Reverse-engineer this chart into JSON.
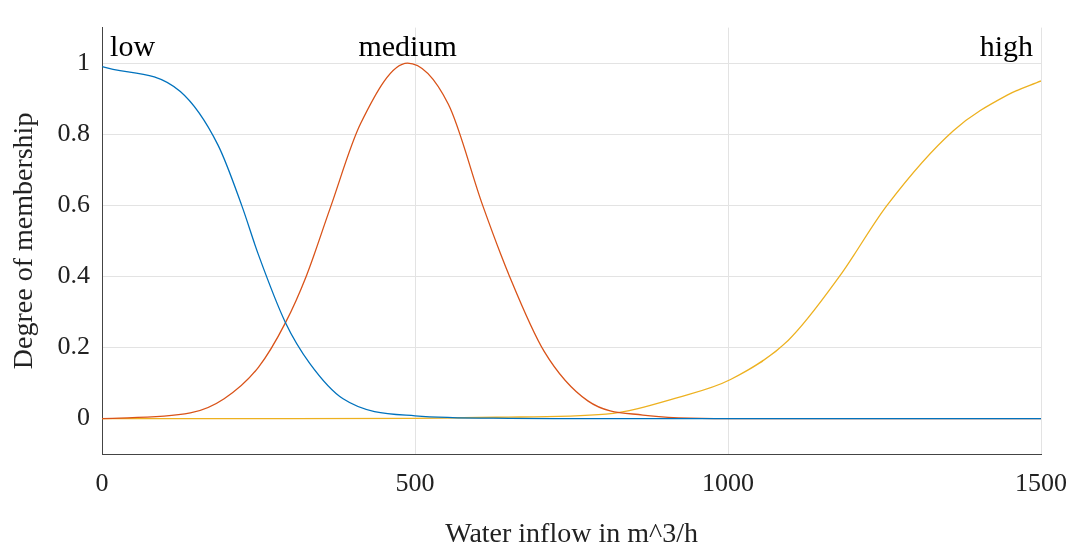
{
  "chart_data": {
    "type": "line",
    "xlabel": "Water inflow in m^3/h",
    "ylabel": "Degree of membership",
    "xlim": [
      0,
      1500
    ],
    "ylim": [
      -0.1,
      1.1
    ],
    "xticks": [
      0,
      500,
      1000,
      1500
    ],
    "yticks": [
      0,
      0.2,
      0.4,
      0.6,
      0.8,
      1
    ],
    "grid": true,
    "legend": false,
    "marker": "none",
    "line_style": "solid",
    "series": [
      {
        "name": "low",
        "color": "#0072bd",
        "x": [
          0,
          125,
          185,
          223,
          250,
          293,
          332,
          385,
          500,
          650,
          800,
          1000,
          1500
        ],
        "values": [
          0.99,
          0.92,
          0.77,
          0.6,
          0.46,
          0.27,
          0.155,
          0.056,
          0.008,
          0.001,
          0,
          0,
          0
        ]
      },
      {
        "name": "medium",
        "color": "#d95319",
        "x": [
          0,
          141,
          195,
          250,
          293,
          326,
          364,
          413,
          488,
          553,
          608,
          651,
          706,
          776,
          864,
          1000,
          1500
        ],
        "values": [
          0,
          0.016,
          0.056,
          0.145,
          0.27,
          0.4,
          0.59,
          0.83,
          1,
          0.885,
          0.6,
          0.4,
          0.19,
          0.05,
          0.01,
          0,
          0
        ]
      },
      {
        "name": "high",
        "color": "#edb120",
        "x": [
          0,
          300,
          500,
          630,
          805,
          921,
          1004,
          1096,
          1178,
          1254,
          1360,
          1446,
          1500
        ],
        "values": [
          0,
          0,
          0.001,
          0.004,
          0.013,
          0.06,
          0.11,
          0.22,
          0.4,
          0.6,
          0.81,
          0.91,
          0.95
        ]
      }
    ]
  }
}
